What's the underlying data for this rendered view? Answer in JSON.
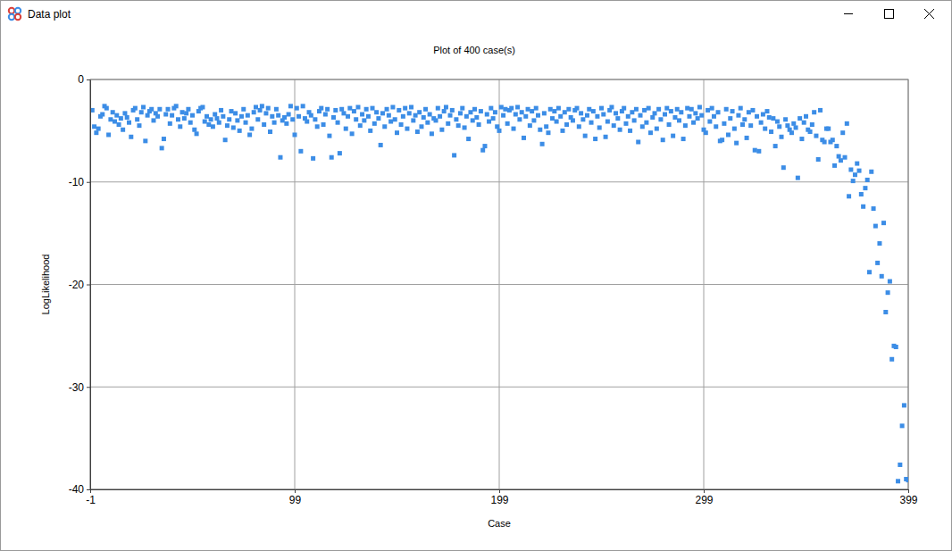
{
  "window": {
    "title": "Data plot"
  },
  "chart_data": {
    "type": "scatter",
    "title": "Plot of 400 case(s)",
    "x_label": "Case",
    "y_label": "LogLikelihood",
    "color": "#3c8de6",
    "marker": "square",
    "grid": true,
    "xlim": [
      -1,
      399
    ],
    "xticks": [
      -1,
      99,
      199,
      299,
      399
    ],
    "ylim": [
      -40,
      0
    ],
    "yticks": [
      -40,
      -30,
      -20,
      -10,
      0
    ],
    "x": [
      0,
      1,
      2,
      3,
      4,
      5,
      6,
      7,
      8,
      9,
      10,
      11,
      12,
      13,
      14,
      15,
      16,
      17,
      18,
      19,
      20,
      21,
      22,
      23,
      24,
      25,
      26,
      27,
      28,
      29,
      30,
      31,
      32,
      33,
      34,
      35,
      36,
      37,
      38,
      39,
      40,
      41,
      42,
      43,
      44,
      45,
      46,
      47,
      48,
      49,
      50,
      51,
      52,
      53,
      54,
      55,
      56,
      57,
      58,
      59,
      60,
      61,
      62,
      63,
      64,
      65,
      66,
      67,
      68,
      69,
      70,
      71,
      72,
      73,
      74,
      75,
      76,
      77,
      78,
      79,
      80,
      81,
      82,
      83,
      84,
      85,
      86,
      87,
      88,
      89,
      90,
      91,
      92,
      93,
      94,
      95,
      96,
      97,
      98,
      99,
      100,
      101,
      102,
      103,
      104,
      105,
      106,
      107,
      108,
      109,
      110,
      111,
      112,
      113,
      114,
      115,
      116,
      117,
      118,
      119,
      120,
      121,
      122,
      123,
      124,
      125,
      126,
      127,
      128,
      129,
      130,
      131,
      132,
      133,
      134,
      135,
      136,
      137,
      138,
      139,
      140,
      141,
      142,
      143,
      144,
      145,
      146,
      147,
      148,
      149,
      150,
      151,
      152,
      153,
      154,
      155,
      156,
      157,
      158,
      159,
      160,
      161,
      162,
      163,
      164,
      165,
      166,
      167,
      168,
      169,
      170,
      171,
      172,
      173,
      174,
      175,
      176,
      177,
      178,
      179,
      180,
      181,
      182,
      183,
      184,
      185,
      186,
      187,
      188,
      189,
      190,
      191,
      192,
      193,
      194,
      195,
      196,
      197,
      198,
      199,
      200,
      201,
      202,
      203,
      204,
      205,
      206,
      207,
      208,
      209,
      210,
      211,
      212,
      213,
      214,
      215,
      216,
      217,
      218,
      219,
      220,
      221,
      222,
      223,
      224,
      225,
      226,
      227,
      228,
      229,
      230,
      231,
      232,
      233,
      234,
      235,
      236,
      237,
      238,
      239,
      240,
      241,
      242,
      243,
      244,
      245,
      246,
      247,
      248,
      249,
      250,
      251,
      252,
      253,
      254,
      255,
      256,
      257,
      258,
      259,
      260,
      261,
      262,
      263,
      264,
      265,
      266,
      267,
      268,
      269,
      270,
      271,
      272,
      273,
      274,
      275,
      276,
      277,
      278,
      279,
      280,
      281,
      282,
      283,
      284,
      285,
      286,
      287,
      288,
      289,
      290,
      291,
      292,
      293,
      294,
      295,
      296,
      297,
      298,
      299,
      300,
      301,
      302,
      303,
      304,
      305,
      306,
      307,
      308,
      309,
      310,
      311,
      312,
      313,
      314,
      315,
      316,
      317,
      318,
      319,
      320,
      321,
      322,
      323,
      324,
      325,
      326,
      327,
      328,
      329,
      330,
      331,
      332,
      333,
      334,
      335,
      336,
      337,
      338,
      339,
      340,
      341,
      342,
      343,
      344,
      345,
      346,
      347,
      348,
      349,
      350,
      351,
      352,
      353,
      354,
      355,
      356,
      357,
      358,
      359,
      360,
      361,
      362,
      363,
      364,
      365,
      366,
      367,
      368,
      369,
      370,
      371,
      372,
      373,
      374,
      375,
      376,
      377,
      378,
      379,
      380,
      381,
      382,
      383,
      384,
      385,
      386,
      387,
      388,
      389,
      390,
      391,
      392,
      393,
      394,
      395,
      396,
      397,
      398,
      399
    ],
    "values": [
      -3.0,
      -4.6,
      -5.2,
      -4.8,
      -3.6,
      -3.4,
      -2.6,
      -2.8,
      -5.4,
      -3.9,
      -3.2,
      -4.1,
      -3.5,
      -4.4,
      -3.8,
      -4.9,
      -3.3,
      -3.7,
      -4.2,
      -5.6,
      -3.0,
      -2.8,
      -3.9,
      -4.5,
      -3.2,
      -2.7,
      -6.0,
      -3.5,
      -3.1,
      -2.9,
      -4.0,
      -3.3,
      -3.6,
      -2.9,
      -6.7,
      -5.8,
      -3.4,
      -2.9,
      -4.3,
      -3.5,
      -2.8,
      -2.6,
      -3.9,
      -4.6,
      -3.2,
      -3.8,
      -3.3,
      -2.9,
      -4.2,
      -3.5,
      -4.9,
      -5.3,
      -3.1,
      -2.8,
      -2.7,
      -4.1,
      -3.6,
      -4.4,
      -3.9,
      -4.6,
      -3.4,
      -3.8,
      -4.2,
      -3.0,
      -3.6,
      -5.9,
      -4.5,
      -3.9,
      -3.1,
      -4.7,
      -3.3,
      -4.0,
      -5.0,
      -3.6,
      -2.9,
      -4.2,
      -3.5,
      -5.4,
      -4.8,
      -3.2,
      -2.7,
      -3.9,
      -3.0,
      -2.6,
      -4.4,
      -3.3,
      -2.8,
      -5.1,
      -3.6,
      -4.2,
      -2.9,
      -3.5,
      -7.6,
      -4.0,
      -3.7,
      -4.3,
      -3.4,
      -2.6,
      -3.9,
      -5.4,
      -2.8,
      -3.6,
      -7.0,
      -2.6,
      -3.8,
      -4.1,
      -3.2,
      -3.5,
      -7.7,
      -3.9,
      -4.6,
      -3.1,
      -2.8,
      -4.4,
      -3.4,
      -2.9,
      -5.5,
      -7.6,
      -3.7,
      -3.0,
      -4.2,
      -7.2,
      -2.9,
      -3.3,
      -4.8,
      -3.6,
      -2.8,
      -5.3,
      -3.1,
      -3.9,
      -2.7,
      -4.5,
      -3.4,
      -4.0,
      -2.9,
      -3.6,
      -5.0,
      -2.8,
      -4.3,
      -3.2,
      -3.8,
      -6.4,
      -3.3,
      -4.6,
      -2.9,
      -3.5,
      -4.1,
      -2.7,
      -3.9,
      -5.2,
      -3.0,
      -4.4,
      -3.6,
      -2.8,
      -4.8,
      -3.3,
      -2.7,
      -4.0,
      -3.5,
      -5.1,
      -3.2,
      -4.6,
      -3.7,
      -2.9,
      -4.2,
      -3.4,
      -5.3,
      -3.8,
      -4.0,
      -2.8,
      -3.6,
      -4.9,
      -3.1,
      -2.7,
      -4.3,
      -3.5,
      -3.0,
      -7.4,
      -3.9,
      -4.5,
      -3.3,
      -2.8,
      -4.7,
      -3.6,
      -5.8,
      -3.2,
      -4.0,
      -2.9,
      -3.7,
      -4.4,
      -3.1,
      -6.9,
      -6.5,
      -3.4,
      -4.1,
      -2.8,
      -3.8,
      -3.2,
      -4.6,
      -5.0,
      -2.7,
      -3.5,
      -2.9,
      -4.3,
      -3.0,
      -2.8,
      -4.8,
      -3.4,
      -2.7,
      -3.9,
      -3.2,
      -5.7,
      -3.6,
      -2.9,
      -4.5,
      -3.1,
      -4.0,
      -2.8,
      -3.5,
      -4.9,
      -6.3,
      -3.3,
      -4.6,
      -5.2,
      -2.9,
      -3.8,
      -3.1,
      -4.1,
      -2.8,
      -3.6,
      -5.0,
      -3.2,
      -4.4,
      -2.9,
      -3.7,
      -4.0,
      -3.0,
      -2.8,
      -4.6,
      -3.3,
      -3.9,
      -5.5,
      -3.5,
      -2.9,
      -4.2,
      -3.1,
      -5.8,
      -3.6,
      -4.7,
      -2.8,
      -3.4,
      -5.6,
      -4.1,
      -3.0,
      -2.7,
      -4.5,
      -3.3,
      -3.8,
      -4.9,
      -3.1,
      -2.8,
      -4.3,
      -3.6,
      -5.0,
      -3.2,
      -4.0,
      -2.9,
      -6.1,
      -3.5,
      -4.6,
      -3.0,
      -4.2,
      -2.8,
      -5.2,
      -3.7,
      -3.3,
      -4.8,
      -2.9,
      -3.9,
      -5.9,
      -3.4,
      -2.8,
      -4.4,
      -3.1,
      -5.5,
      -3.7,
      -2.9,
      -4.0,
      -3.2,
      -5.8,
      -4.5,
      -2.8,
      -3.6,
      -2.9,
      -4.2,
      -3.3,
      -3.8,
      -2.7,
      -3.5,
      -4.9,
      -5.2,
      -3.0,
      -4.1,
      -2.8,
      -3.6,
      -4.6,
      -3.2,
      -6.0,
      -5.9,
      -4.3,
      -2.9,
      -5.4,
      -3.8,
      -3.1,
      -4.8,
      -6.2,
      -3.5,
      -2.8,
      -4.4,
      -3.9,
      -5.7,
      -3.2,
      -4.5,
      -3.0,
      -6.9,
      -3.6,
      -7.0,
      -4.2,
      -3.4,
      -4.8,
      -3.1,
      -3.7,
      -5.1,
      -3.8,
      -6.5,
      -4.1,
      -4.6,
      -5.6,
      -8.6,
      -3.9,
      -4.5,
      -4.9,
      -5.2,
      -4.3,
      -4.7,
      -9.6,
      -3.8,
      -5.8,
      -4.2,
      -3.6,
      -4.9,
      -5.1,
      -4.4,
      -3.2,
      -5.5,
      -7.8,
      -3.0,
      -5.9,
      -6.1,
      -4.8,
      -4.8,
      -6.1,
      -5.9,
      -8.4,
      -6.5,
      -7.5,
      -7.9,
      -5.2,
      -7.6,
      -4.3,
      -11.4,
      -8.8,
      -9.9,
      -9.3,
      -8.2,
      -8.9,
      -11.2,
      -12.4,
      -10.6,
      -9.8,
      -18.8,
      -9.0,
      -12.6,
      -14.3,
      -17.9,
      -16.0,
      -19.2,
      -14.0,
      -22.7,
      -20.8,
      -19.7,
      -27.3,
      -26.0,
      -26.1,
      -39.2,
      -37.6,
      -33.8,
      -31.8,
      -39.0,
      -39.1
    ]
  }
}
